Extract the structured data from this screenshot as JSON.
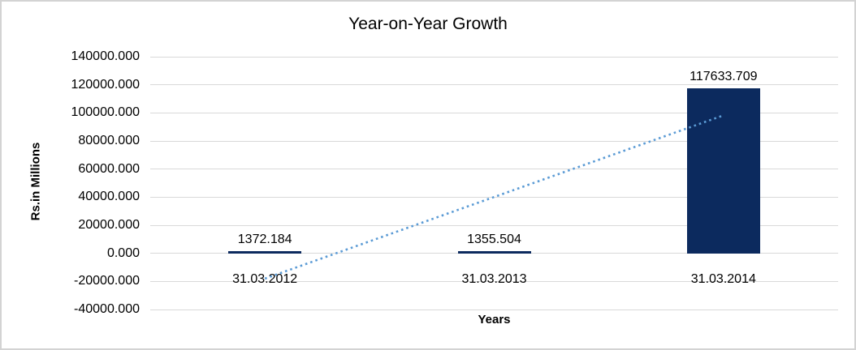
{
  "window": {
    "background": "#ffffff",
    "border_color": "#d3d3d3"
  },
  "chart_data": {
    "type": "bar",
    "title": "Year-on-Year Growth",
    "xlabel": "Years",
    "ylabel": "Rs.in Millions",
    "categories": [
      "31.03.2012",
      "31.03.2013",
      "31.03.2014"
    ],
    "values": [
      1372.184,
      1355.504,
      117633.709
    ],
    "data_labels": [
      "1372.184",
      "1355.504",
      "117633.709"
    ],
    "ylim": [
      -40000,
      140000
    ],
    "ytick_step": 20000,
    "ytick_labels": [
      "140000.000",
      "120000.000",
      "100000.000",
      "80000.000",
      "60000.000",
      "40000.000",
      "20000.000",
      "0.000",
      "-20000.000",
      "-40000.000"
    ],
    "grid": true,
    "legend": "none",
    "colors": {
      "bar": "#0c2a5e",
      "trendline": "#5b9bd5",
      "gridline": "#d9d9d9",
      "text": "#000000"
    },
    "trendline": {
      "kind": "linear",
      "style": "dotted"
    }
  }
}
